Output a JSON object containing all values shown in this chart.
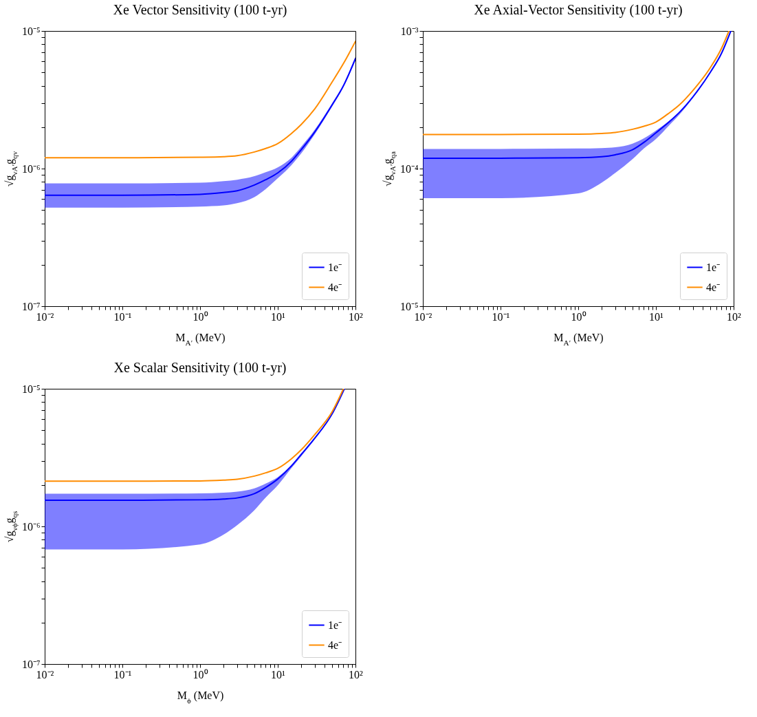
{
  "chart_data": [
    {
      "type": "line",
      "title": "Xe Vector Sensitivity (100 t-yr)",
      "xlabel": "M$_{A′}$ (MeV)",
      "ylabel": "√g$_{νA′}$g$_{qv}$",
      "log": "xy",
      "legend": "bottom right",
      "xlim": [
        0.01,
        100
      ],
      "ylim": [
        1e-07,
        1e-05
      ],
      "xticks": [
        {
          "value": 0.01,
          "label": "10⁻²"
        },
        {
          "value": 0.02,
          "label": null
        },
        {
          "value": 0.03,
          "label": null
        },
        {
          "value": 0.04,
          "label": null
        },
        {
          "value": 0.05,
          "label": null
        },
        {
          "value": 0.06,
          "label": null
        },
        {
          "value": 0.07,
          "label": null
        },
        {
          "value": 0.08,
          "label": null
        },
        {
          "value": 0.09,
          "label": null
        },
        {
          "value": 0.1,
          "label": "10⁻¹"
        },
        {
          "value": 0.2,
          "label": null
        },
        {
          "value": 0.3,
          "label": null
        },
        {
          "value": 0.4,
          "label": null
        },
        {
          "value": 0.5,
          "label": null
        },
        {
          "value": 0.6,
          "label": null
        },
        {
          "value": 0.7,
          "label": null
        },
        {
          "value": 0.8,
          "label": null
        },
        {
          "value": 0.9,
          "label": null
        },
        {
          "value": 1,
          "label": "10⁰"
        },
        {
          "value": 2,
          "label": null
        },
        {
          "value": 3,
          "label": null
        },
        {
          "value": 4,
          "label": null
        },
        {
          "value": 5,
          "label": null
        },
        {
          "value": 6,
          "label": null
        },
        {
          "value": 7,
          "label": null
        },
        {
          "value": 8,
          "label": null
        },
        {
          "value": 9,
          "label": null
        },
        {
          "value": 10,
          "label": "10¹"
        },
        {
          "value": 20,
          "label": null
        },
        {
          "value": 30,
          "label": null
        },
        {
          "value": 40,
          "label": null
        },
        {
          "value": 50,
          "label": null
        },
        {
          "value": 60,
          "label": null
        },
        {
          "value": 70,
          "label": null
        },
        {
          "value": 80,
          "label": null
        },
        {
          "value": 90,
          "label": null
        },
        {
          "value": 100,
          "label": "10²"
        }
      ],
      "yticks": [
        {
          "value": 1e-07,
          "label": "10⁻⁷"
        },
        {
          "value": 2e-07,
          "label": null
        },
        {
          "value": 3e-07,
          "label": null
        },
        {
          "value": 4e-07,
          "label": null
        },
        {
          "value": 5e-07,
          "label": null
        },
        {
          "value": 6e-07,
          "label": null
        },
        {
          "value": 7e-07,
          "label": null
        },
        {
          "value": 8e-07,
          "label": null
        },
        {
          "value": 9e-07,
          "label": null
        },
        {
          "value": 1e-06,
          "label": "10⁻⁶"
        },
        {
          "value": 2e-06,
          "label": null
        },
        {
          "value": 3e-06,
          "label": null
        },
        {
          "value": 4e-06,
          "label": null
        },
        {
          "value": 5e-06,
          "label": null
        },
        {
          "value": 6e-06,
          "label": null
        },
        {
          "value": 7e-06,
          "label": null
        },
        {
          "value": 8e-06,
          "label": null
        },
        {
          "value": 9e-06,
          "label": null
        },
        {
          "value": 1e-05,
          "label": "10⁻⁵"
        }
      ],
      "series": [
        {
          "name": "1e⁻",
          "color": "#0000ff",
          "x": [
            0.01,
            0.1,
            1,
            2,
            3,
            5,
            7,
            10,
            15,
            20,
            30,
            50,
            70,
            100
          ],
          "values": [
            6.4e-07,
            6.4e-07,
            6.5e-07,
            6.7e-07,
            6.9e-07,
            7.6e-07,
            8.3e-07,
            9.3e-07,
            1.13e-06,
            1.37e-06,
            1.85e-06,
            2.9e-06,
            4e-06,
            6.3e-06
          ],
          "lower": [
            5.2e-07,
            5.2e-07,
            5.3e-07,
            5.4e-07,
            5.6e-07,
            6.2e-07,
            7.1e-07,
            8.5e-07,
            1.06e-06,
            1.29e-06,
            1.78e-06,
            2.82e-06,
            3.9e-06,
            6.1e-06
          ],
          "upper": [
            7.8e-07,
            7.8e-07,
            7.9e-07,
            8.1e-07,
            8.3e-07,
            8.8e-07,
            9.4e-07,
            1.02e-06,
            1.2e-06,
            1.44e-06,
            1.92e-06,
            2.98e-06,
            4.1e-06,
            6.5e-06
          ]
        },
        {
          "name": "4e⁻",
          "color": "#ff8c00",
          "x": [
            0.01,
            0.1,
            1,
            2,
            3,
            5,
            7,
            10,
            15,
            20,
            30,
            50,
            70,
            100
          ],
          "values": [
            1.2e-06,
            1.2e-06,
            1.21e-06,
            1.22e-06,
            1.24e-06,
            1.32e-06,
            1.4e-06,
            1.52e-06,
            1.8e-06,
            2.09e-06,
            2.72e-06,
            4.25e-06,
            5.8e-06,
            8.4e-06
          ]
        }
      ]
    },
    {
      "type": "line",
      "title": "Xe Axial-Vector Sensitivity (100 t-yr)",
      "xlabel": "M$_{A′}$ (MeV)",
      "ylabel": "√g$_{νA′}$g$_{qa}$",
      "log": "xy",
      "legend": "bottom right",
      "xlim": [
        0.01,
        100
      ],
      "ylim": [
        1e-05,
        0.001
      ],
      "xticks": [
        {
          "value": 0.01,
          "label": "10⁻²"
        },
        {
          "value": 0.02,
          "label": null
        },
        {
          "value": 0.03,
          "label": null
        },
        {
          "value": 0.04,
          "label": null
        },
        {
          "value": 0.05,
          "label": null
        },
        {
          "value": 0.06,
          "label": null
        },
        {
          "value": 0.07,
          "label": null
        },
        {
          "value": 0.08,
          "label": null
        },
        {
          "value": 0.09,
          "label": null
        },
        {
          "value": 0.1,
          "label": "10⁻¹"
        },
        {
          "value": 0.2,
          "label": null
        },
        {
          "value": 0.3,
          "label": null
        },
        {
          "value": 0.4,
          "label": null
        },
        {
          "value": 0.5,
          "label": null
        },
        {
          "value": 0.6,
          "label": null
        },
        {
          "value": 0.7,
          "label": null
        },
        {
          "value": 0.8,
          "label": null
        },
        {
          "value": 0.9,
          "label": null
        },
        {
          "value": 1,
          "label": "10⁰"
        },
        {
          "value": 2,
          "label": null
        },
        {
          "value": 3,
          "label": null
        },
        {
          "value": 4,
          "label": null
        },
        {
          "value": 5,
          "label": null
        },
        {
          "value": 6,
          "label": null
        },
        {
          "value": 7,
          "label": null
        },
        {
          "value": 8,
          "label": null
        },
        {
          "value": 9,
          "label": null
        },
        {
          "value": 10,
          "label": "10¹"
        },
        {
          "value": 20,
          "label": null
        },
        {
          "value": 30,
          "label": null
        },
        {
          "value": 40,
          "label": null
        },
        {
          "value": 50,
          "label": null
        },
        {
          "value": 60,
          "label": null
        },
        {
          "value": 70,
          "label": null
        },
        {
          "value": 80,
          "label": null
        },
        {
          "value": 90,
          "label": null
        },
        {
          "value": 100,
          "label": "10²"
        }
      ],
      "yticks": [
        {
          "value": 1e-05,
          "label": "10⁻⁵"
        },
        {
          "value": 2e-05,
          "label": null
        },
        {
          "value": 3e-05,
          "label": null
        },
        {
          "value": 4e-05,
          "label": null
        },
        {
          "value": 5e-05,
          "label": null
        },
        {
          "value": 6e-05,
          "label": null
        },
        {
          "value": 7e-05,
          "label": null
        },
        {
          "value": 8e-05,
          "label": null
        },
        {
          "value": 9e-05,
          "label": null
        },
        {
          "value": 0.0001,
          "label": "10⁻⁴"
        },
        {
          "value": 0.0002,
          "label": null
        },
        {
          "value": 0.0003,
          "label": null
        },
        {
          "value": 0.0004,
          "label": null
        },
        {
          "value": 0.0005,
          "label": null
        },
        {
          "value": 0.0006,
          "label": null
        },
        {
          "value": 0.0007,
          "label": null
        },
        {
          "value": 0.0008,
          "label": null
        },
        {
          "value": 0.0009,
          "label": null
        },
        {
          "value": 0.001,
          "label": "10⁻³"
        }
      ],
      "series": [
        {
          "name": "1e⁻",
          "color": "#0000ff",
          "x": [
            0.01,
            0.1,
            1,
            2,
            3,
            5,
            7,
            10,
            15,
            20,
            30,
            50,
            70,
            92
          ],
          "values": [
            0.000119,
            0.000119,
            0.00012,
            0.000122,
            0.000126,
            0.000137,
            0.000155,
            0.000182,
            0.00022,
            0.000256,
            0.000333,
            0.0005,
            0.00069,
            0.001
          ],
          "lower": [
            6.1e-05,
            6.1e-05,
            6.6e-05,
            7.9e-05,
            9.3e-05,
            0.000117,
            0.00014,
            0.000164,
            0.000208,
            0.000246,
            0.000327,
            0.000495,
            0.000685,
            0.001
          ],
          "upper": [
            0.000139,
            0.000139,
            0.00014,
            0.000141,
            0.000143,
            0.000152,
            0.000166,
            0.000189,
            0.000224,
            0.000258,
            0.000334,
            0.0005,
            0.00069,
            0.001
          ]
        },
        {
          "name": "4e⁻",
          "color": "#ff8c00",
          "x": [
            0.01,
            0.1,
            1,
            2,
            3,
            5,
            7,
            10,
            15,
            20,
            30,
            50,
            70,
            87
          ],
          "values": [
            0.000177,
            0.000177,
            0.000178,
            0.00018,
            0.000183,
            0.000193,
            0.000203,
            0.000218,
            0.000255,
            0.00029,
            0.00037,
            0.00054,
            0.00075,
            0.001
          ]
        }
      ]
    },
    {
      "type": "line",
      "title": "Xe Scalar Sensitivity (100 t-yr)",
      "xlabel": "M$_{ϕ}$ (MeV)",
      "ylabel": "√g$_{νϕ}$g$_{qs}$",
      "log": "xy",
      "legend": "bottom right",
      "xlim": [
        0.01,
        100
      ],
      "ylim": [
        1e-07,
        1e-05
      ],
      "xticks": [
        {
          "value": 0.01,
          "label": "10⁻²"
        },
        {
          "value": 0.02,
          "label": null
        },
        {
          "value": 0.03,
          "label": null
        },
        {
          "value": 0.04,
          "label": null
        },
        {
          "value": 0.05,
          "label": null
        },
        {
          "value": 0.06,
          "label": null
        },
        {
          "value": 0.07,
          "label": null
        },
        {
          "value": 0.08,
          "label": null
        },
        {
          "value": 0.09,
          "label": null
        },
        {
          "value": 0.1,
          "label": "10⁻¹"
        },
        {
          "value": 0.2,
          "label": null
        },
        {
          "value": 0.3,
          "label": null
        },
        {
          "value": 0.4,
          "label": null
        },
        {
          "value": 0.5,
          "label": null
        },
        {
          "value": 0.6,
          "label": null
        },
        {
          "value": 0.7,
          "label": null
        },
        {
          "value": 0.8,
          "label": null
        },
        {
          "value": 0.9,
          "label": null
        },
        {
          "value": 1,
          "label": "10⁰"
        },
        {
          "value": 2,
          "label": null
        },
        {
          "value": 3,
          "label": null
        },
        {
          "value": 4,
          "label": null
        },
        {
          "value": 5,
          "label": null
        },
        {
          "value": 6,
          "label": null
        },
        {
          "value": 7,
          "label": null
        },
        {
          "value": 8,
          "label": null
        },
        {
          "value": 9,
          "label": null
        },
        {
          "value": 10,
          "label": "10¹"
        },
        {
          "value": 20,
          "label": null
        },
        {
          "value": 30,
          "label": null
        },
        {
          "value": 40,
          "label": null
        },
        {
          "value": 50,
          "label": null
        },
        {
          "value": 60,
          "label": null
        },
        {
          "value": 70,
          "label": null
        },
        {
          "value": 80,
          "label": null
        },
        {
          "value": 90,
          "label": null
        },
        {
          "value": 100,
          "label": "10²"
        }
      ],
      "yticks": [
        {
          "value": 1e-07,
          "label": "10⁻⁷"
        },
        {
          "value": 2e-07,
          "label": null
        },
        {
          "value": 3e-07,
          "label": null
        },
        {
          "value": 4e-07,
          "label": null
        },
        {
          "value": 5e-07,
          "label": null
        },
        {
          "value": 6e-07,
          "label": null
        },
        {
          "value": 7e-07,
          "label": null
        },
        {
          "value": 8e-07,
          "label": null
        },
        {
          "value": 9e-07,
          "label": null
        },
        {
          "value": 1e-06,
          "label": "10⁻⁶"
        },
        {
          "value": 2e-06,
          "label": null
        },
        {
          "value": 3e-06,
          "label": null
        },
        {
          "value": 4e-06,
          "label": null
        },
        {
          "value": 5e-06,
          "label": null
        },
        {
          "value": 6e-06,
          "label": null
        },
        {
          "value": 7e-06,
          "label": null
        },
        {
          "value": 8e-06,
          "label": null
        },
        {
          "value": 9e-06,
          "label": null
        },
        {
          "value": 1e-05,
          "label": "10⁻⁵"
        }
      ],
      "series": [
        {
          "name": "1e⁻",
          "color": "#0000ff",
          "x": [
            0.01,
            0.1,
            1,
            2,
            3,
            5,
            7,
            10,
            15,
            20,
            30,
            50,
            72
          ],
          "values": [
            1.55e-06,
            1.55e-06,
            1.56e-06,
            1.58e-06,
            1.61e-06,
            1.73e-06,
            1.92e-06,
            2.21e-06,
            2.75e-06,
            3.33e-06,
            4.38e-06,
            6.56e-06,
            1e-05
          ],
          "lower": [
            6.8e-07,
            6.8e-07,
            7.4e-07,
            8.7e-07,
            1.02e-06,
            1.31e-06,
            1.62e-06,
            1.99e-06,
            2.65e-06,
            3.23e-06,
            4.3e-06,
            6.5e-06,
            1e-05
          ],
          "upper": [
            1.73e-06,
            1.73e-06,
            1.74e-06,
            1.76e-06,
            1.79e-06,
            1.89e-06,
            2.05e-06,
            2.28e-06,
            2.8e-06,
            3.36e-06,
            4.4e-06,
            6.58e-06,
            1e-05
          ]
        },
        {
          "name": "4e⁻",
          "color": "#ff8c00",
          "x": [
            0.01,
            0.1,
            1,
            2,
            3,
            5,
            7,
            10,
            15,
            20,
            30,
            50,
            70
          ],
          "values": [
            2.13e-06,
            2.13e-06,
            2.14e-06,
            2.17e-06,
            2.2e-06,
            2.32e-06,
            2.45e-06,
            2.64e-06,
            3.1e-06,
            3.6e-06,
            4.66e-06,
            6.8e-06,
            1e-05
          ]
        }
      ]
    }
  ]
}
